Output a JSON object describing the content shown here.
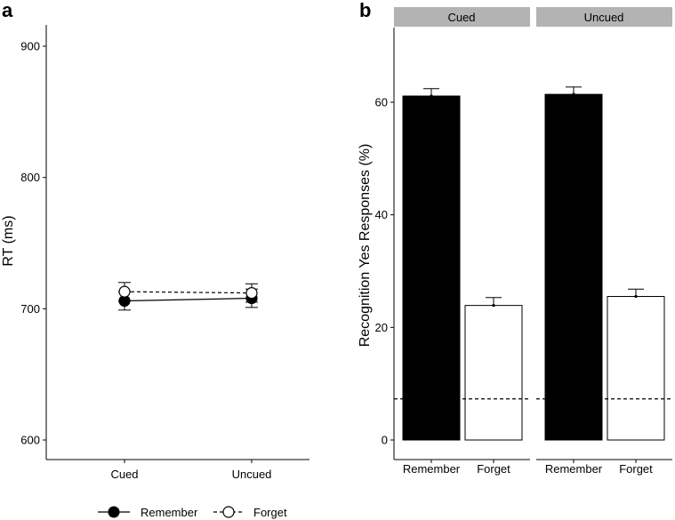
{
  "panels": [
    {
      "letter": "a"
    },
    {
      "letter": "b"
    }
  ],
  "legend": {
    "items": [
      {
        "label": "Remember",
        "marker": "filled-circle",
        "line": "solid"
      },
      {
        "label": "Forget",
        "marker": "open-circle",
        "line": "dashed"
      }
    ]
  },
  "chart_data": [
    {
      "type": "line",
      "ylabel": "RT (ms)",
      "xlabel": "",
      "categories": [
        "Cued",
        "Uncued"
      ],
      "ylim": [
        595,
        915
      ],
      "yticks": [
        600,
        700,
        800,
        900
      ],
      "grid": false,
      "legend": "bottom",
      "series": [
        {
          "name": "Remember",
          "values": [
            706,
            708
          ],
          "errors": [
            7,
            7
          ],
          "marker": "filled",
          "line": "solid",
          "color": "#000000"
        },
        {
          "name": "Forget",
          "values": [
            713,
            712
          ],
          "errors": [
            7,
            7
          ],
          "marker": "open",
          "line": "dashed",
          "color": "#000000"
        }
      ]
    },
    {
      "type": "bar",
      "ylabel": "Recognition Yes Responses (%)",
      "xlabel": "",
      "facets": [
        "Cued",
        "Uncued"
      ],
      "categories": [
        "Remember",
        "Forget"
      ],
      "ylim": [
        -2,
        73
      ],
      "yticks": [
        0,
        20,
        40,
        60
      ],
      "grid": false,
      "reference_line": 7.3,
      "series": [
        {
          "facet": "Cued",
          "values": [
            61.1,
            23.9
          ],
          "errors": [
            1.3,
            1.4
          ]
        },
        {
          "facet": "Uncued",
          "values": [
            61.4,
            25.5
          ],
          "errors": [
            1.3,
            1.3
          ]
        }
      ],
      "bar_colors": {
        "Remember": "#000000",
        "Forget": "#ffffff"
      }
    }
  ]
}
